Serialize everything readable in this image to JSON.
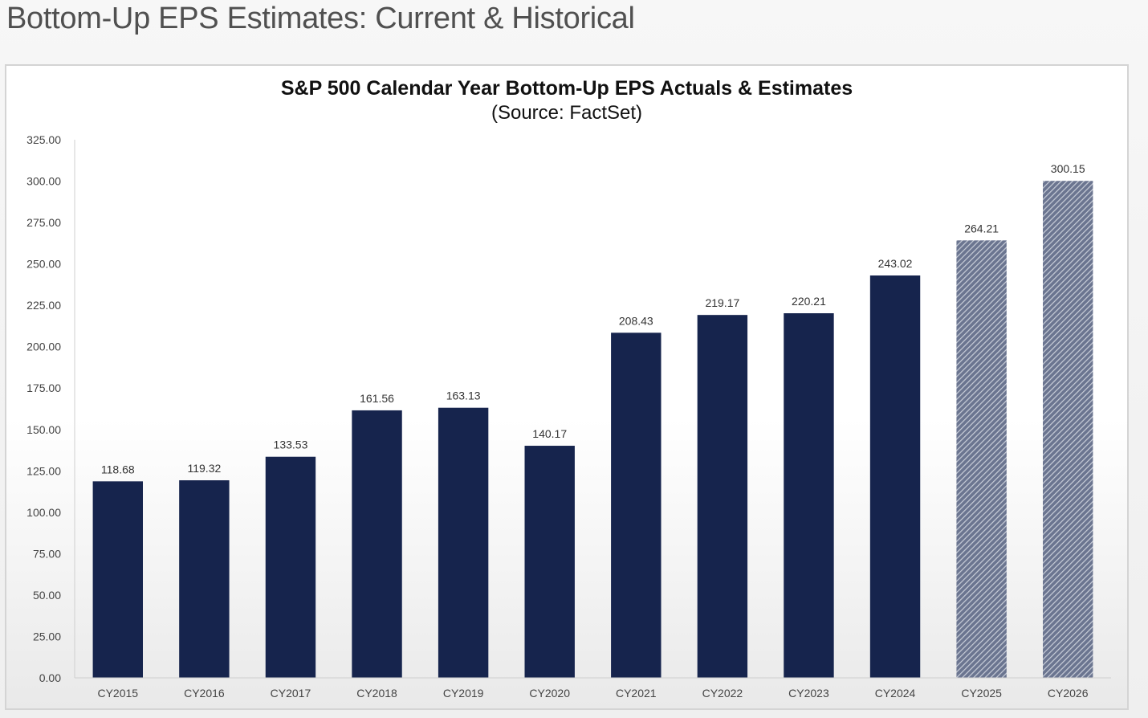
{
  "page": {
    "title": "Bottom-Up EPS Estimates: Current & Historical"
  },
  "chart_data": {
    "type": "bar",
    "title": "S&P 500 Calendar Year Bottom-Up EPS Actuals & Estimates",
    "subtitle": "(Source: FactSet)",
    "categories": [
      "CY2015",
      "CY2016",
      "CY2017",
      "CY2018",
      "CY2019",
      "CY2020",
      "CY2021",
      "CY2022",
      "CY2023",
      "CY2024",
      "CY2025",
      "CY2026"
    ],
    "values": [
      118.68,
      119.32,
      133.53,
      161.56,
      163.13,
      140.17,
      208.43,
      219.17,
      220.21,
      243.02,
      264.21,
      300.15
    ],
    "value_labels": [
      "118.68",
      "119.32",
      "133.53",
      "161.56",
      "163.13",
      "140.17",
      "208.43",
      "219.17",
      "220.21",
      "243.02",
      "264.21",
      "300.15"
    ],
    "estimate_flags": [
      false,
      false,
      false,
      false,
      false,
      false,
      false,
      false,
      false,
      false,
      true,
      true
    ],
    "ylim": [
      0,
      325
    ],
    "yticks": [
      "0.00",
      "25.00",
      "50.00",
      "75.00",
      "100.00",
      "125.00",
      "150.00",
      "175.00",
      "200.00",
      "225.00",
      "250.00",
      "275.00",
      "300.00",
      "325.00"
    ],
    "xlabel": "",
    "ylabel": "",
    "grid": false,
    "colors": {
      "actual": "#16244d",
      "estimate": "#6b7590",
      "estimate_hatch": "#c9ced9"
    }
  }
}
